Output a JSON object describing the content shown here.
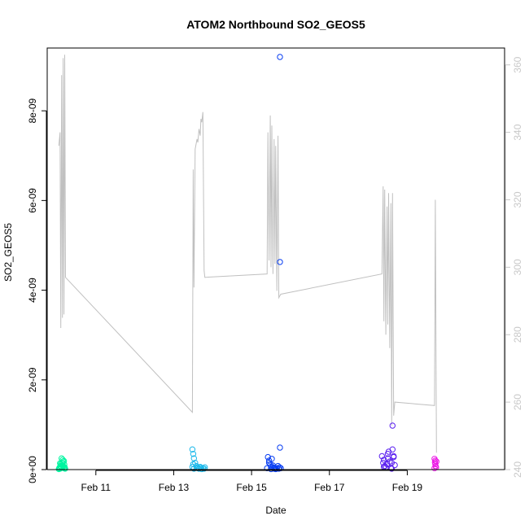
{
  "chart_data": {
    "type": "scatter",
    "title": "ATOM2 Northbound SO2_GEOS5",
    "xlabel": "Date",
    "ylabel": "SO2_GEOS5",
    "x_unit": "days in February",
    "xlim": [
      9.75,
      21.5
    ],
    "ylim": [
      0,
      9.4e-09
    ],
    "y2lim": [
      240,
      365
    ],
    "x_ticks": [
      {
        "value": 11,
        "label": "Feb 11"
      },
      {
        "value": 13,
        "label": "Feb 13"
      },
      {
        "value": 15,
        "label": "Feb 15"
      },
      {
        "value": 17,
        "label": "Feb 17"
      },
      {
        "value": 19,
        "label": "Feb 19"
      }
    ],
    "y_ticks": [
      {
        "value": 0,
        "label": "0e+00"
      },
      {
        "value": 2e-09,
        "label": "2e-09"
      },
      {
        "value": 4e-09,
        "label": "4e-09"
      },
      {
        "value": 6e-09,
        "label": "6e-09"
      },
      {
        "value": 8e-09,
        "label": "8e-09"
      }
    ],
    "y2_ticks": [
      {
        "value": 240,
        "label": "240"
      },
      {
        "value": 260,
        "label": "260"
      },
      {
        "value": 280,
        "label": "280"
      },
      {
        "value": 300,
        "label": "300"
      },
      {
        "value": 320,
        "label": "320"
      },
      {
        "value": 340,
        "label": "340"
      },
      {
        "value": 360,
        "label": "360"
      }
    ],
    "colors": {
      "line": "#c0c0c0",
      "right_axis": "#c8c8c8",
      "frame": "#000000"
    },
    "point_series": [
      {
        "color": "#00f5a0",
        "x": [
          10.05,
          10.06,
          10.07,
          10.08,
          10.09,
          10.1,
          10.11,
          10.12,
          10.13,
          10.14,
          10.15,
          10.16,
          10.17,
          10.18,
          10.19,
          10.2,
          10.21,
          10.08,
          10.12,
          10.15,
          10.18,
          10.2
        ],
        "y": [
          1e-11,
          3e-11,
          5e-11,
          2e-11,
          8e-11,
          1.2e-10,
          4e-11,
          6e-11,
          1.5e-10,
          9e-11,
          2.2e-10,
          1.8e-10,
          7e-11,
          3e-11,
          1.1e-10,
          5e-11,
          2e-11,
          1.4e-10,
          2.5e-10,
          8e-11,
          1.9e-10,
          4e-11
        ]
      },
      {
        "color": "#1ab8ea",
        "x": [
          13.48,
          13.5,
          13.52,
          13.55,
          13.58,
          13.6,
          13.62,
          13.65,
          13.68,
          13.7,
          13.72,
          13.75,
          13.78,
          13.8,
          13.5,
          13.48,
          13.52
        ],
        "y": [
          4.5e-10,
          3.5e-10,
          2.5e-10,
          1.5e-10,
          8e-11,
          5e-11,
          3e-11,
          2e-11,
          6e-11,
          4e-11,
          1e-11,
          3e-11,
          2e-11,
          5e-11,
          1.2e-10,
          6e-11,
          2e-11
        ]
      },
      {
        "color": "#0a3ff2",
        "x": [
          15.4,
          15.42,
          15.45,
          15.48,
          15.5,
          15.52,
          15.55,
          15.58,
          15.6,
          15.62,
          15.65,
          15.68,
          15.7,
          15.72,
          15.75,
          15.45,
          15.5,
          15.55,
          15.73,
          15.73,
          15.73
        ],
        "y": [
          3e-11,
          2.8e-10,
          2e-10,
          1.2e-10,
          6e-11,
          2.4e-10,
          5e-11,
          2e-11,
          4e-11,
          1e-11,
          3e-11,
          8e-11,
          2e-11,
          5e-11,
          3e-11,
          1.5e-10,
          1e-11,
          9e-11,
          9.2e-09,
          4.63e-09,
          4.9e-10
        ]
      },
      {
        "color": "#5a1ff0",
        "x": [
          18.35,
          18.38,
          18.4,
          18.42,
          18.45,
          18.48,
          18.5,
          18.52,
          18.55,
          18.58,
          18.6,
          18.62,
          18.65,
          18.68,
          18.4,
          18.5,
          18.6,
          18.65,
          18.62
        ],
        "y": [
          3e-10,
          1.5e-10,
          2.2e-10,
          8e-11,
          5e-11,
          1.2e-10,
          2.5e-10,
          4e-10,
          1.8e-10,
          3e-11,
          2e-11,
          4.5e-10,
          3e-10,
          1e-10,
          6e-11,
          3.5e-10,
          1.5e-10,
          2.8e-10,
          9.8e-10
        ]
      },
      {
        "color": "#ec18e6",
        "x": [
          19.7,
          19.71,
          19.72,
          19.73,
          19.74,
          19.75,
          19.7,
          19.72
        ],
        "y": [
          2.4e-10,
          1.6e-10,
          1.2e-10,
          8e-11,
          5e-11,
          1.8e-10,
          3e-11,
          2e-10
        ]
      }
    ],
    "line_series": {
      "axis": "right",
      "x": [
        10.05,
        10.08,
        10.1,
        10.12,
        10.14,
        10.16,
        10.18,
        10.2,
        10.22,
        13.48,
        13.5,
        13.52,
        13.55,
        13.6,
        13.62,
        13.65,
        13.68,
        13.7,
        13.72,
        13.75,
        13.78,
        13.8,
        15.4,
        15.42,
        15.45,
        15.48,
        15.5,
        15.52,
        15.55,
        15.58,
        15.6,
        15.62,
        15.65,
        15.68,
        15.7,
        15.75,
        18.35,
        18.38,
        18.4,
        18.42,
        18.45,
        18.48,
        18.5,
        18.52,
        18.55,
        18.58,
        18.6,
        18.62,
        18.65,
        18.68,
        19.7,
        19.72,
        19.75
      ],
      "y": [
        336,
        340,
        282,
        357,
        285,
        362,
        286,
        363,
        297,
        257,
        329,
        294,
        335,
        338,
        337,
        341,
        339,
        344,
        343,
        346,
        299,
        297,
        298,
        340,
        302,
        345,
        300,
        342,
        298,
        338,
        301,
        336,
        293,
        339,
        291,
        292,
        298,
        324,
        284,
        323,
        280,
        318,
        283,
        322,
        276,
        319,
        253,
        322,
        256,
        260,
        259,
        320,
        245
      ]
    }
  }
}
